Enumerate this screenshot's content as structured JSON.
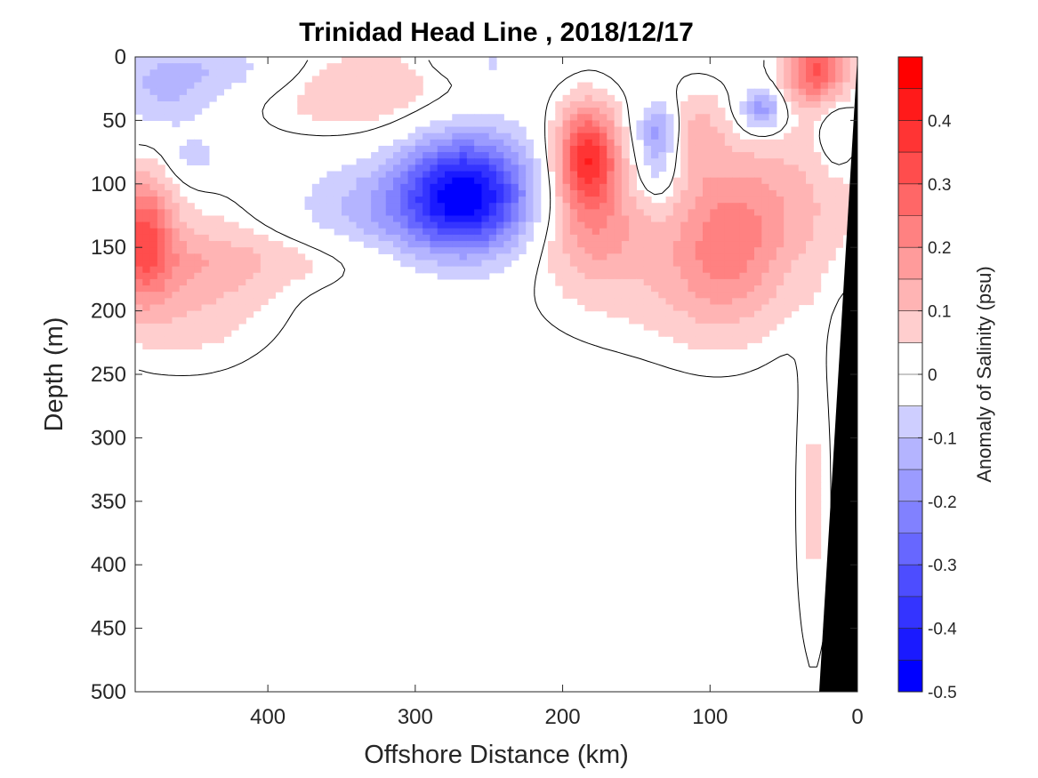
{
  "chart_data": {
    "type": "heatmap",
    "title": "Trinidad Head Line , 2018/12/17",
    "xlabel": "Offshore Distance (km)",
    "ylabel": "Depth (m)",
    "colorbar_label": "Anomaly of Salinity (psu)",
    "xlim": [
      490,
      0
    ],
    "ylim": [
      0,
      500
    ],
    "x_reversed": true,
    "y_reversed": true,
    "x_ticks": [
      400,
      300,
      200,
      100,
      0
    ],
    "y_ticks": [
      0,
      50,
      100,
      150,
      200,
      250,
      300,
      350,
      400,
      450,
      500
    ],
    "colorbar": {
      "range": [
        -0.5,
        0.5
      ],
      "step": 0.05,
      "ticks": [
        0.4,
        0.3,
        0.2,
        0.1,
        0,
        -0.1,
        -0.2,
        -0.3,
        -0.4,
        -0.5
      ],
      "tick_labels": [
        "0.4",
        "0.3",
        "0.2",
        "0.1",
        "0",
        "-0.1",
        "-0.2",
        "-0.3",
        "-0.4",
        "-0.5"
      ]
    },
    "anomaly_features": [
      {
        "x": 265,
        "depth": 108,
        "value": -0.45,
        "sx": 30,
        "sy": 32
      },
      {
        "x": 318,
        "depth": 120,
        "value": -0.12,
        "sx": 45,
        "sy": 28
      },
      {
        "x": 183,
        "depth": 78,
        "value": 0.38,
        "sx": 15,
        "sy": 28
      },
      {
        "x": 178,
        "depth": 135,
        "value": 0.14,
        "sx": 25,
        "sy": 30
      },
      {
        "x": 485,
        "depth": 140,
        "value": 0.27,
        "sx": 14,
        "sy": 35
      },
      {
        "x": 455,
        "depth": 175,
        "value": 0.12,
        "sx": 40,
        "sy": 40
      },
      {
        "x": 390,
        "depth": 160,
        "value": 0.06,
        "sx": 60,
        "sy": 15
      },
      {
        "x": 340,
        "depth": 25,
        "value": 0.1,
        "sx": 45,
        "sy": 25
      },
      {
        "x": 28,
        "depth": 10,
        "value": 0.3,
        "sx": 15,
        "sy": 20
      },
      {
        "x": 90,
        "depth": 150,
        "value": 0.16,
        "sx": 28,
        "sy": 45
      },
      {
        "x": 50,
        "depth": 110,
        "value": 0.1,
        "sx": 40,
        "sy": 40
      },
      {
        "x": 110,
        "depth": 60,
        "value": 0.1,
        "sx": 15,
        "sy": 25
      },
      {
        "x": 130,
        "depth": 175,
        "value": 0.06,
        "sx": 60,
        "sy": 40
      },
      {
        "x": 30,
        "depth": 350,
        "value": 0.06,
        "sx": 8,
        "sy": 90
      },
      {
        "x": 135,
        "depth": 55,
        "value": -0.15,
        "sx": 10,
        "sy": 15
      },
      {
        "x": 135,
        "depth": 85,
        "value": -0.12,
        "sx": 10,
        "sy": 20
      },
      {
        "x": 65,
        "depth": 42,
        "value": -0.2,
        "sx": 10,
        "sy": 12
      },
      {
        "x": 470,
        "depth": 25,
        "value": -0.1,
        "sx": 25,
        "sy": 25
      },
      {
        "x": 420,
        "depth": 10,
        "value": -0.07,
        "sx": 40,
        "sy": 15
      },
      {
        "x": 450,
        "depth": 80,
        "value": -0.07,
        "sx": 12,
        "sy": 12
      },
      {
        "x": 250,
        "depth": 5,
        "value": -0.06,
        "sx": 25,
        "sy": 8
      },
      {
        "x": 15,
        "depth": 60,
        "value": -0.08,
        "sx": 8,
        "sy": 20
      }
    ],
    "colors": {
      "max": "#ff0000",
      "zero": "#ffffff",
      "min": "#0000ff",
      "land": "#000000",
      "contour": "#000000",
      "text": "#262626"
    }
  }
}
